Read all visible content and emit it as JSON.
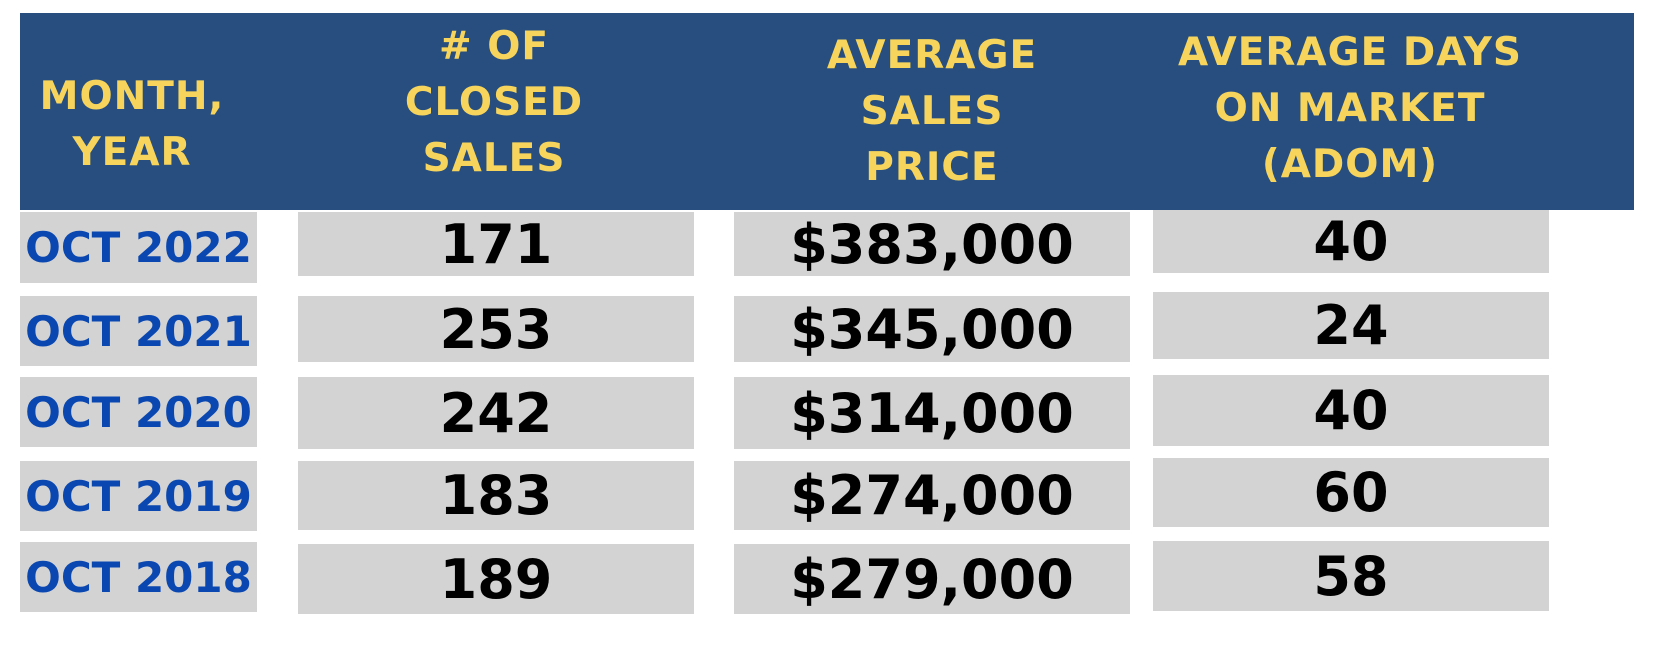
{
  "chart_data": {
    "type": "table",
    "columns": [
      "MONTH, YEAR",
      "# OF CLOSED SALES",
      "AVERAGE SALES PRICE",
      "AVERAGE DAYS ON MARKET (ADOM)"
    ],
    "header_lines": [
      [
        "MONTH,",
        "YEAR"
      ],
      [
        "# OF",
        "CLOSED",
        "SALES"
      ],
      [
        "AVERAGE",
        "SALES",
        "PRICE"
      ],
      [
        "AVERAGE DAYS",
        "ON MARKET",
        "(ADOM)"
      ]
    ],
    "rows": [
      [
        "OCT 2022",
        "171",
        "$383,000",
        "40"
      ],
      [
        "OCT 2021",
        "253",
        "$345,000",
        "24"
      ],
      [
        "OCT 2020",
        "242",
        "$314,000",
        "40"
      ],
      [
        "OCT 2019",
        "183",
        "$274,000",
        "60"
      ],
      [
        "OCT 2018",
        "189",
        "$279,000",
        "58"
      ]
    ]
  },
  "colors": {
    "header_bg": "#274e7f",
    "header_text": "#f7d55c",
    "cell_bg": "#d3d3d3",
    "month_text": "#0a47b0",
    "value_text": "#000000"
  }
}
